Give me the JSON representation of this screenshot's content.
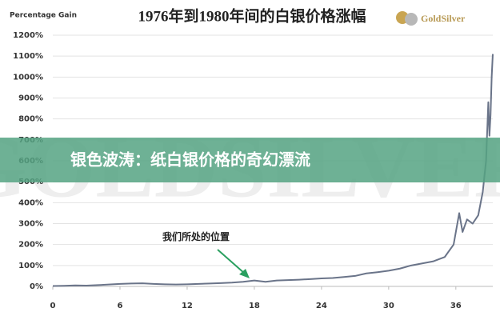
{
  "chart_data": {
    "type": "line",
    "title": "1976年到1980年间的白银价格涨幅",
    "y_label": "Percentage Gain",
    "logo": "GoldSilver",
    "watermark": "GOLDSILVER",
    "banner": "银色波涛：纸白银价格的奇幻漂流",
    "annotation": "我们所处的位置",
    "color": "#6a7489",
    "grid": true,
    "xlim": [
      0,
      39.3
    ],
    "ylim": [
      0,
      1200
    ],
    "xticks": [
      0,
      6,
      12,
      18,
      24,
      30,
      36
    ],
    "yticks": [
      {
        "value": 0,
        "label": "0%"
      },
      {
        "value": 100,
        "label": "100%"
      },
      {
        "value": 200,
        "label": "200%"
      },
      {
        "value": 300,
        "label": "300%"
      },
      {
        "value": 400,
        "label": "400%"
      },
      {
        "value": 500,
        "label": "500%"
      },
      {
        "value": 600,
        "label": "600%"
      },
      {
        "value": 700,
        "label": "700%"
      },
      {
        "value": 800,
        "label": "800%"
      },
      {
        "value": 900,
        "label": "900%"
      },
      {
        "value": 1000,
        "label": "1000%"
      },
      {
        "value": 1100,
        "label": "1100%"
      },
      {
        "value": 1200,
        "label": "1200%"
      }
    ],
    "x": [
      0,
      1,
      2,
      3,
      4,
      5,
      6,
      7,
      8,
      9,
      10,
      11,
      12,
      13,
      14,
      15,
      16,
      17,
      18,
      19,
      20,
      21,
      22,
      23,
      24,
      25,
      26,
      27,
      28,
      29,
      30,
      31,
      32,
      33,
      34,
      35,
      35.8,
      36.3,
      36.6,
      37,
      37.5,
      38,
      38.4,
      38.7,
      38.9,
      39,
      39.1,
      39.2,
      39.3
    ],
    "values": [
      2,
      3,
      5,
      4,
      6,
      9,
      12,
      14,
      15,
      12,
      10,
      9,
      10,
      12,
      14,
      16,
      18,
      22,
      28,
      22,
      28,
      30,
      32,
      35,
      38,
      40,
      45,
      50,
      62,
      68,
      75,
      85,
      100,
      110,
      120,
      140,
      200,
      350,
      260,
      320,
      300,
      340,
      450,
      600,
      880,
      720,
      820,
      1000,
      1110
    ]
  }
}
